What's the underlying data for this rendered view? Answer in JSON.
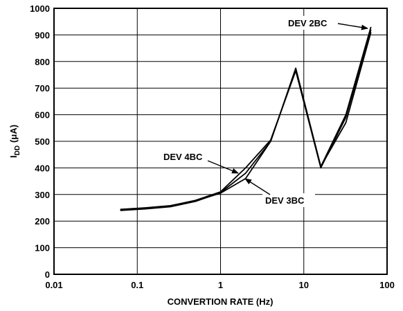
{
  "chart_data": {
    "type": "line",
    "xscale": "log",
    "xlim": [
      0.01,
      100
    ],
    "ylim": [
      0,
      1000
    ],
    "grid": true,
    "xlabel": "CONVERTION RATE (Hz)",
    "ylabel": {
      "main": "I",
      "sub": "DD",
      "unit": "(μA)"
    },
    "x_ticks": [
      "0.01",
      "0.1",
      "1",
      "10",
      "100"
    ],
    "y_ticks": [
      "0",
      "100",
      "200",
      "300",
      "400",
      "500",
      "600",
      "700",
      "800",
      "900",
      "1000"
    ],
    "series": [
      {
        "name": "DEV 2BC",
        "x": [
          0.0625,
          0.125,
          0.25,
          0.5,
          1,
          2,
          4,
          8,
          16,
          32,
          64
        ],
        "y": [
          240,
          246,
          254,
          274,
          307,
          380,
          500,
          775,
          405,
          600,
          930
        ]
      },
      {
        "name": "DEV 3BC",
        "x": [
          0.0625,
          0.125,
          0.25,
          0.5,
          1,
          2,
          4,
          8,
          16,
          32,
          64
        ],
        "y": [
          242,
          248,
          256,
          276,
          305,
          360,
          500,
          770,
          405,
          570,
          910
        ]
      },
      {
        "name": "DEV 4BC",
        "x": [
          0.0625,
          0.125,
          0.25,
          0.5,
          1,
          2,
          4,
          8,
          16,
          32,
          64
        ],
        "y": [
          244,
          250,
          258,
          278,
          310,
          400,
          505,
          765,
          400,
          590,
          920
        ]
      }
    ],
    "annotations": [
      {
        "text": "DEV 2BC",
        "series": "DEV 2BC"
      },
      {
        "text": "DEV 4BC",
        "series": "DEV 4BC"
      },
      {
        "text": "DEV 3BC",
        "series": "DEV 3BC"
      }
    ],
    "colors": {
      "line": "#000000",
      "grid": "#000000",
      "background": "#ffffff"
    }
  }
}
